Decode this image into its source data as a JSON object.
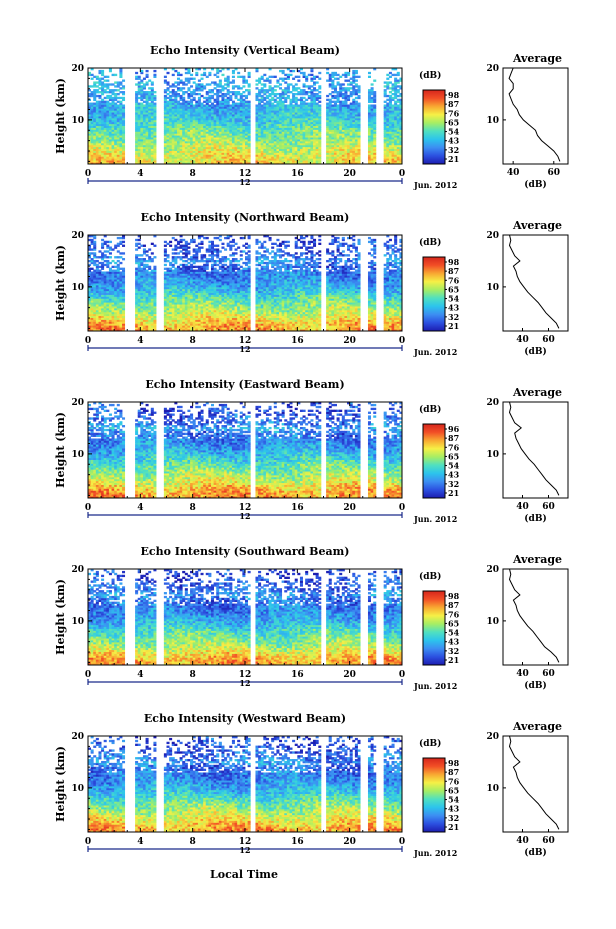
{
  "chart_data": {
    "type": "heatmap",
    "xlabel": "Local Time",
    "date_label": "Jun. 2012",
    "day_marker": "12",
    "x_ticks": [
      "0",
      "4",
      "8",
      "12",
      "16",
      "20",
      "0"
    ],
    "x_tick_values": [
      0,
      4,
      8,
      12,
      16,
      20,
      24
    ],
    "xlim": [
      0,
      24
    ],
    "ylabel": "Height (km)",
    "ylim": [
      1.5,
      20
    ],
    "y_ticks": [
      "10",
      "20"
    ],
    "y_tick_values": [
      10,
      20
    ],
    "colorbar_label": "(dB)",
    "colormap": [
      "#1c1cb0",
      "#2c50e0",
      "#3c8ef2",
      "#2cc4ec",
      "#50e0c0",
      "#a6ee64",
      "#f6f046",
      "#f8a832",
      "#f24e26",
      "#d6261c"
    ],
    "profile_title": "Average",
    "profile_xlabel": "(dB)",
    "profile_ylim": [
      1.5,
      20
    ],
    "data_gaps_hours": [
      [
        2.9,
        3.6
      ],
      [
        5.3,
        5.8
      ],
      [
        12.5,
        12.85
      ],
      [
        17.8,
        18.2
      ],
      [
        20.9,
        21.4
      ],
      [
        22.0,
        22.5
      ]
    ],
    "panels": [
      {
        "title": "Echo Intensity (Vertical Beam)",
        "colorbar_ticks": [
          "98",
          "87",
          "76",
          "65",
          "54",
          "43",
          "32",
          "21"
        ],
        "color_range": [
          21,
          98
        ],
        "profile_xlim": [
          35,
          67
        ],
        "profile_ticks": [
          "40",
          "60"
        ],
        "profile_tick_values": [
          40,
          60
        ],
        "profile": {
          "height_km": [
            2,
            3,
            4,
            5,
            6,
            7,
            8,
            9,
            10,
            11,
            12,
            13,
            14,
            15,
            16,
            17,
            18,
            19,
            20
          ],
          "db": [
            63,
            62,
            60,
            57,
            54,
            52,
            51,
            48,
            45,
            43,
            42,
            40,
            39,
            38,
            40,
            40,
            38,
            39,
            40
          ]
        }
      },
      {
        "title": "Echo Intensity (Northward Beam)",
        "colorbar_ticks": [
          "98",
          "87",
          "76",
          "65",
          "54",
          "43",
          "32",
          "21"
        ],
        "color_range": [
          21,
          98
        ],
        "profile_xlim": [
          25,
          75
        ],
        "profile_ticks": [
          "40",
          "60"
        ],
        "profile_tick_values": [
          40,
          60
        ],
        "profile": {
          "height_km": [
            2,
            3,
            4,
            5,
            6,
            7,
            8,
            9,
            10,
            11,
            12,
            13,
            14,
            15,
            16,
            17,
            18,
            19,
            20
          ],
          "db": [
            68,
            66,
            62,
            58,
            55,
            52,
            48,
            44,
            41,
            38,
            36,
            35,
            33,
            38,
            34,
            32,
            30,
            31,
            30
          ]
        }
      },
      {
        "title": "Echo Intensity (Eastward Beam)",
        "colorbar_ticks": [
          "96",
          "87",
          "76",
          "65",
          "54",
          "43",
          "32",
          "21"
        ],
        "color_range": [
          21,
          96
        ],
        "profile_xlim": [
          25,
          75
        ],
        "profile_ticks": [
          "40",
          "60"
        ],
        "profile_tick_values": [
          40,
          60
        ],
        "profile": {
          "height_km": [
            2,
            3,
            4,
            5,
            6,
            7,
            8,
            9,
            10,
            11,
            12,
            13,
            14,
            15,
            16,
            17,
            18,
            19,
            20
          ],
          "db": [
            68,
            66,
            62,
            58,
            55,
            52,
            49,
            45,
            42,
            39,
            37,
            35,
            34,
            39,
            34,
            32,
            30,
            31,
            30
          ]
        }
      },
      {
        "title": "Echo Intensity (Southward Beam)",
        "colorbar_ticks": [
          "98",
          "87",
          "76",
          "65",
          "54",
          "43",
          "32",
          "21"
        ],
        "color_range": [
          21,
          98
        ],
        "profile_xlim": [
          25,
          75
        ],
        "profile_ticks": [
          "40",
          "60"
        ],
        "profile_tick_values": [
          40,
          60
        ],
        "profile": {
          "height_km": [
            2,
            3,
            4,
            5,
            6,
            7,
            8,
            9,
            10,
            11,
            12,
            13,
            14,
            15,
            16,
            17,
            18,
            19,
            20
          ],
          "db": [
            68,
            66,
            62,
            57,
            54,
            51,
            48,
            44,
            41,
            38,
            36,
            35,
            33,
            38,
            34,
            32,
            30,
            31,
            30
          ]
        }
      },
      {
        "title": "Echo Intensity (Westward Beam)",
        "colorbar_ticks": [
          "98",
          "87",
          "76",
          "65",
          "54",
          "43",
          "32",
          "21"
        ],
        "color_range": [
          21,
          98
        ],
        "profile_xlim": [
          25,
          75
        ],
        "profile_ticks": [
          "40",
          "60"
        ],
        "profile_tick_values": [
          40,
          60
        ],
        "profile": {
          "height_km": [
            2,
            3,
            4,
            5,
            6,
            7,
            8,
            9,
            10,
            11,
            12,
            13,
            14,
            15,
            16,
            17,
            18,
            19,
            20
          ],
          "db": [
            68,
            66,
            62,
            58,
            55,
            52,
            48,
            44,
            41,
            38,
            36,
            35,
            33,
            38,
            34,
            32,
            30,
            31,
            30
          ]
        }
      }
    ]
  }
}
